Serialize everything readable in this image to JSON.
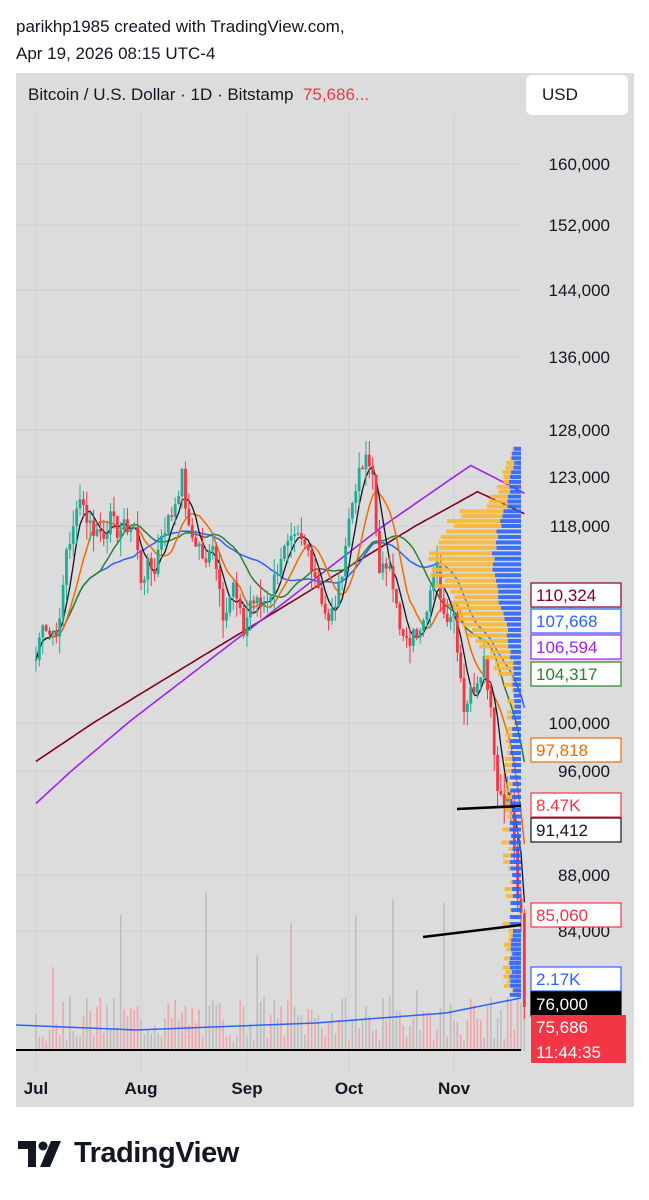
{
  "header": {
    "line1": "parikhp1985 created with TradingView.com,",
    "line2": "Apr 19, 2026 08:15 UTC-4"
  },
  "toolbar": {
    "symbol": "Bitcoin / U.S. Dollar · 1D · Bitstamp",
    "price": "75,686...",
    "currency_button": "USD"
  },
  "footer": {
    "brand": "TradingView"
  },
  "colors": {
    "panel_bg": "#dcdcdc",
    "up": "#22ab94",
    "down": "#f23645",
    "volume_profile_up": "#2962ff",
    "volume_profile_down": "#f7b733",
    "ma_black": "#131722",
    "ma_orange": "#ef6c00",
    "ma_green": "#2e7d32",
    "ma_blue": "#2962ff",
    "ma_purple": "#a020f0",
    "ma_maroon": "#800020"
  },
  "chart_data": {
    "type": "candlestick",
    "symbol": "Bitcoin / U.S. Dollar",
    "interval": "1D",
    "exchange": "Bitstamp",
    "y_ticks": [
      "160,000",
      "152,000",
      "144,000",
      "136,000",
      "128,000",
      "123,000",
      "118,000",
      "100,000",
      "96,000",
      "88,000",
      "84,000"
    ],
    "x_ticks": [
      "Jul",
      "Aug",
      "Sep",
      "Oct",
      "Nov"
    ],
    "price_labels": [
      {
        "text": "110,324",
        "color": "#800020",
        "style": "outline"
      },
      {
        "text": "107,668",
        "color": "#2962ff",
        "style": "outline"
      },
      {
        "text": "106,594",
        "color": "#a020f0",
        "style": "outline"
      },
      {
        "text": "104,317",
        "color": "#2e7d32",
        "style": "outline"
      },
      {
        "text": "97,818",
        "color": "#ef6c00",
        "style": "outline"
      },
      {
        "text": "8.47K",
        "color": "#f23645",
        "style": "outline"
      },
      {
        "text": "91,412",
        "color": "#131722",
        "style": "outline"
      },
      {
        "text": "85,060",
        "color": "#f23645",
        "style": "outline"
      },
      {
        "text": "2.17K",
        "color": "#2962ff",
        "style": "outline"
      },
      {
        "text": "76,000",
        "color": "#000000",
        "style": "solid"
      },
      {
        "text": "75,686",
        "color": "#f23645",
        "style": "solid"
      },
      {
        "text": "11:44:35",
        "color": "#f23645",
        "style": "solid"
      }
    ],
    "drawn_lines": [
      {
        "name": "trendline-upper",
        "from": [
          93000,
          "Oct 29"
        ],
        "to": [
          93200,
          "Nov 21"
        ]
      },
      {
        "name": "trendline-lower",
        "from": [
          84000,
          "Oct 24"
        ],
        "to": [
          84900,
          "Nov 21"
        ]
      },
      {
        "name": "horizontal-76000",
        "price": 76000
      }
    ],
    "closes": [
      {
        "date": "Jul 1",
        "v": 105800
      },
      {
        "date": "Jul 3",
        "v": 109600
      },
      {
        "date": "Jul 5",
        "v": 108200
      },
      {
        "date": "Jul 8",
        "v": 108900
      },
      {
        "date": "Jul 10",
        "v": 116000
      },
      {
        "date": "Jul 12",
        "v": 117500
      },
      {
        "date": "Jul 14",
        "v": 121500
      },
      {
        "date": "Jul 16",
        "v": 118800
      },
      {
        "date": "Jul 18",
        "v": 117700
      },
      {
        "date": "Jul 21",
        "v": 117400
      },
      {
        "date": "Jul 23",
        "v": 118700
      },
      {
        "date": "Jul 25",
        "v": 117600
      },
      {
        "date": "Jul 28",
        "v": 118000
      },
      {
        "date": "Jul 30",
        "v": 117800
      },
      {
        "date": "Aug 1",
        "v": 113200
      },
      {
        "date": "Aug 3",
        "v": 114200
      },
      {
        "date": "Aug 5",
        "v": 114100
      },
      {
        "date": "Aug 7",
        "v": 117400
      },
      {
        "date": "Aug 10",
        "v": 119200
      },
      {
        "date": "Aug 13",
        "v": 123100
      },
      {
        "date": "Aug 15",
        "v": 117400
      },
      {
        "date": "Aug 18",
        "v": 116200
      },
      {
        "date": "Aug 20",
        "v": 114200
      },
      {
        "date": "Aug 22",
        "v": 116800
      },
      {
        "date": "Aug 25",
        "v": 110100
      },
      {
        "date": "Aug 28",
        "v": 112500
      },
      {
        "date": "Aug 31",
        "v": 108300
      },
      {
        "date": "Sep 2",
        "v": 111200
      },
      {
        "date": "Sep 5",
        "v": 110700
      },
      {
        "date": "Sep 8",
        "v": 112000
      },
      {
        "date": "Sep 11",
        "v": 115400
      },
      {
        "date": "Sep 13",
        "v": 116000
      },
      {
        "date": "Sep 16",
        "v": 116700
      },
      {
        "date": "Sep 19",
        "v": 115700
      },
      {
        "date": "Sep 22",
        "v": 112600
      },
      {
        "date": "Sep 25",
        "v": 109000
      },
      {
        "date": "Sep 28",
        "v": 112100
      },
      {
        "date": "Oct 1",
        "v": 118600
      },
      {
        "date": "Oct 3",
        "v": 122300
      },
      {
        "date": "Oct 6",
        "v": 124700
      },
      {
        "date": "Oct 8",
        "v": 123300
      },
      {
        "date": "Oct 10",
        "v": 113200
      },
      {
        "date": "Oct 13",
        "v": 115200
      },
      {
        "date": "Oct 16",
        "v": 108200
      },
      {
        "date": "Oct 18",
        "v": 107100
      },
      {
        "date": "Oct 21",
        "v": 108400
      },
      {
        "date": "Oct 24",
        "v": 111000
      },
      {
        "date": "Oct 27",
        "v": 114100
      },
      {
        "date": "Oct 29",
        "v": 110000
      },
      {
        "date": "Nov 1",
        "v": 110100
      },
      {
        "date": "Nov 4",
        "v": 101500
      },
      {
        "date": "Nov 7",
        "v": 103400
      },
      {
        "date": "Nov 10",
        "v": 105900
      },
      {
        "date": "Nov 12",
        "v": 101600
      },
      {
        "date": "Nov 14",
        "v": 94500
      },
      {
        "date": "Nov 16",
        "v": 94200
      },
      {
        "date": "Nov 18",
        "v": 92900
      },
      {
        "date": "Nov 20",
        "v": 86600
      },
      {
        "date": "Nov 21",
        "v": 84500
      },
      {
        "date": "Nov 22",
        "v": 75686
      }
    ]
  }
}
